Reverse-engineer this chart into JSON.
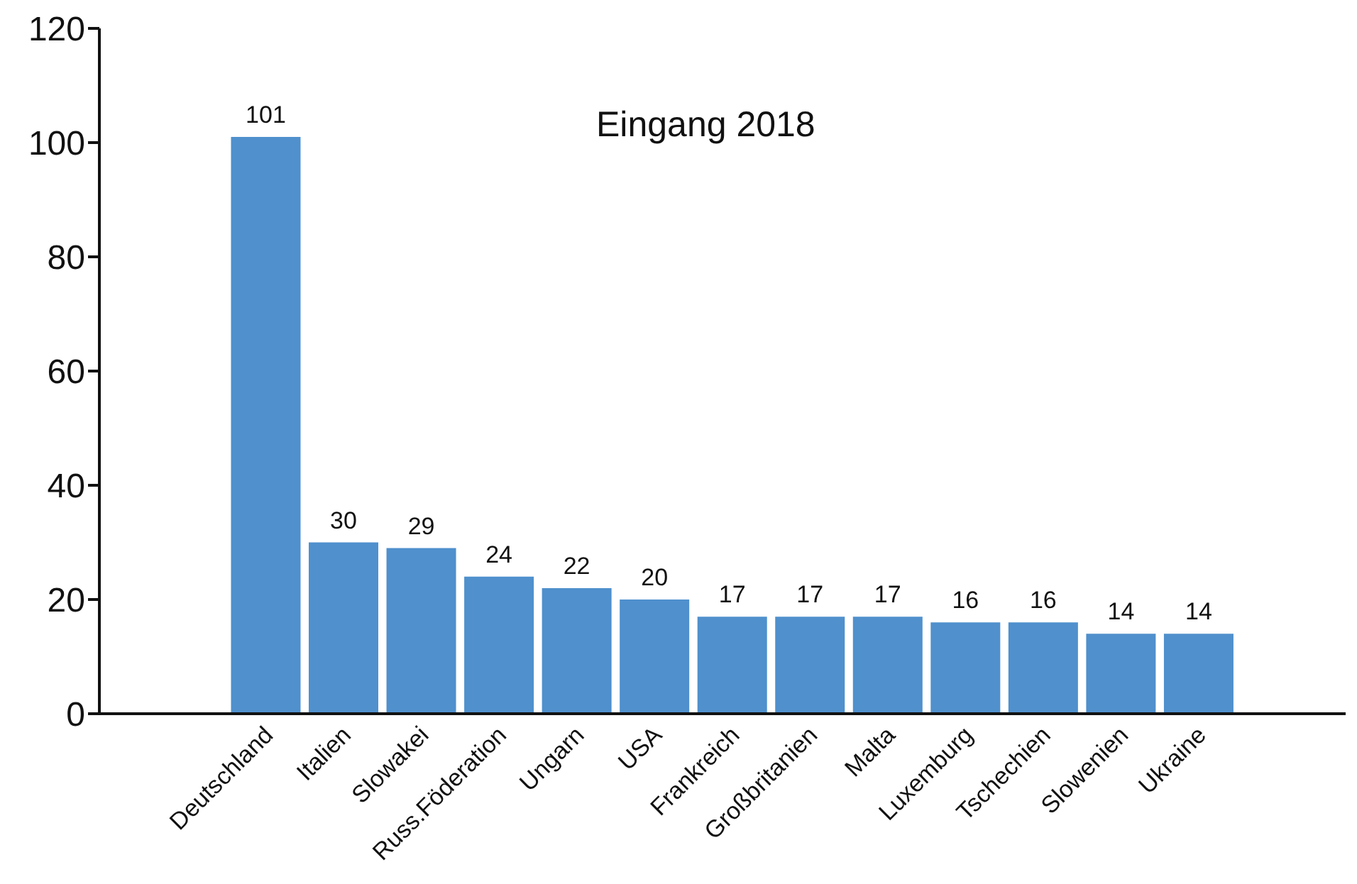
{
  "chart_data": {
    "type": "bar",
    "title": "Eingang 2018",
    "categories": [
      "Deutschland",
      "Italien",
      "Slowakei",
      "Russ.Föderation",
      "Ungarn",
      "USA",
      "Frankreich",
      "Großbritanien",
      "Malta",
      "Luxemburg",
      "Tschechien",
      "Slowenien",
      "Ukraine"
    ],
    "values": [
      101,
      30,
      29,
      24,
      22,
      20,
      17,
      17,
      17,
      16,
      16,
      14,
      14
    ],
    "color": "#4f90cd",
    "ylim": [
      0,
      120
    ],
    "yticks": [
      0,
      20,
      40,
      60,
      80,
      100,
      120
    ],
    "grid": false,
    "data_labels": true
  }
}
